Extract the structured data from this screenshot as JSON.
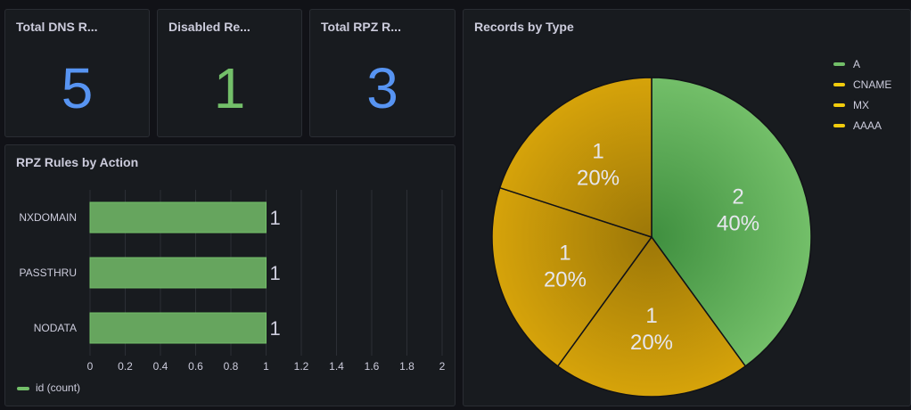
{
  "stats": [
    {
      "title": "Total DNS R...",
      "value": "5",
      "color": "#5794f2"
    },
    {
      "title": "Disabled Re...",
      "value": "1",
      "color": "#73bf69"
    },
    {
      "title": "Total RPZ R...",
      "value": "3",
      "color": "#5794f2"
    }
  ],
  "rpz_panel": {
    "title": "RPZ Rules by Action"
  },
  "pie_panel": {
    "title": "Records by Type"
  },
  "chart_data": [
    {
      "type": "bar",
      "orientation": "horizontal",
      "title": "RPZ Rules by Action",
      "categories": [
        "NXDOMAIN",
        "PASSTHRU",
        "NODATA"
      ],
      "series": [
        {
          "name": "id (count)",
          "values": [
            1,
            1,
            1
          ],
          "color": "#73bf69"
        }
      ],
      "xlim": [
        0,
        2
      ],
      "xticks": [
        "0",
        "0.2",
        "0.4",
        "0.6",
        "0.8",
        "1",
        "1.2",
        "1.4",
        "1.6",
        "1.8",
        "2"
      ],
      "value_labels": [
        "1",
        "1",
        "1"
      ],
      "grid": true,
      "legend": "bottom-left"
    },
    {
      "type": "pie",
      "title": "Records by Type",
      "slices": [
        {
          "label": "A",
          "value": 2,
          "percent": "40%",
          "color": "#73bf69"
        },
        {
          "label": "CNAME",
          "value": 1,
          "percent": "20%",
          "color": "#d6a30a"
        },
        {
          "label": "MX",
          "value": 1,
          "percent": "20%",
          "color": "#d6a30a"
        },
        {
          "label": "AAAA",
          "value": 1,
          "percent": "20%",
          "color": "#d6a30a"
        }
      ],
      "legend": "top-right"
    }
  ]
}
